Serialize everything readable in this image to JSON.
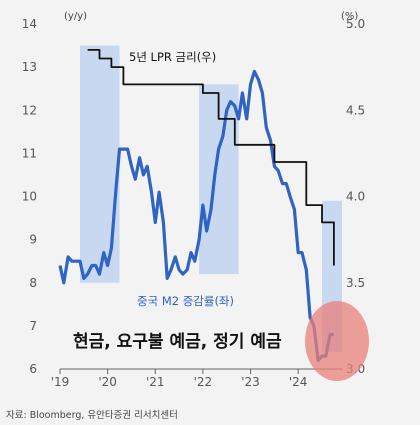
{
  "chart_data": {
    "type": "line",
    "left_axis": {
      "unit": "(y/y)",
      "ylim": [
        6,
        14
      ],
      "ticks": [
        "6",
        "7",
        "8",
        "9",
        "10",
        "11",
        "12",
        "13",
        "14"
      ]
    },
    "right_axis": {
      "unit": "(%)",
      "ylim": [
        3.0,
        5.0
      ],
      "ticks": [
        "3.0",
        "3.5",
        "4.0",
        "4.5",
        "5.0"
      ]
    },
    "x_axis": {
      "xlim": [
        2019.0,
        2024.92
      ],
      "ticks": [
        "'19",
        "'20",
        "'21",
        "'22",
        "'23",
        "'24"
      ],
      "tick_positions": [
        2019,
        2020,
        2021,
        2022,
        2023,
        2024
      ]
    },
    "series": [
      {
        "name": "중국 M2 증감률(좌)",
        "axis": "left",
        "color": "#2f63c4",
        "x": [
          2019.0,
          2019.08,
          2019.17,
          2019.25,
          2019.33,
          2019.42,
          2019.5,
          2019.58,
          2019.67,
          2019.75,
          2019.83,
          2019.92,
          2020.0,
          2020.08,
          2020.17,
          2020.25,
          2020.33,
          2020.42,
          2020.5,
          2020.58,
          2020.67,
          2020.75,
          2020.83,
          2020.92,
          2021.0,
          2021.08,
          2021.17,
          2021.25,
          2021.33,
          2021.42,
          2021.5,
          2021.58,
          2021.67,
          2021.75,
          2021.83,
          2021.92,
          2022.0,
          2022.08,
          2022.17,
          2022.25,
          2022.33,
          2022.42,
          2022.5,
          2022.58,
          2022.67,
          2022.75,
          2022.83,
          2022.92,
          2023.0,
          2023.08,
          2023.17,
          2023.25,
          2023.33,
          2023.42,
          2023.5,
          2023.58,
          2023.67,
          2023.75,
          2023.83,
          2023.92,
          2024.0,
          2024.08,
          2024.17,
          2024.25,
          2024.33,
          2024.42,
          2024.5,
          2024.58,
          2024.67,
          2024.75
        ],
        "values": [
          8.4,
          8.0,
          8.6,
          8.5,
          8.5,
          8.5,
          8.1,
          8.2,
          8.4,
          8.4,
          8.2,
          8.7,
          8.4,
          8.8,
          10.1,
          11.1,
          11.1,
          11.1,
          10.7,
          10.4,
          10.9,
          10.5,
          10.7,
          10.1,
          9.4,
          10.1,
          9.4,
          8.1,
          8.3,
          8.6,
          8.3,
          8.2,
          8.3,
          8.7,
          8.5,
          9.0,
          9.8,
          9.2,
          9.7,
          10.5,
          11.1,
          11.4,
          12.0,
          12.2,
          12.1,
          11.8,
          12.4,
          11.8,
          12.6,
          12.9,
          12.7,
          12.4,
          11.6,
          11.3,
          10.7,
          10.6,
          10.3,
          10.3,
          10.0,
          9.7,
          8.7,
          8.7,
          8.3,
          7.2,
          7.0,
          6.2,
          6.3,
          6.3,
          6.8,
          6.8
        ],
        "label_text": "중국 M2 증감률(좌)"
      },
      {
        "name": "5년 LPR 금리(우)",
        "axis": "right",
        "color": "#111111",
        "step": true,
        "x": [
          2019.58,
          2019.67,
          2019.75,
          2019.83,
          2019.92,
          2020.0,
          2020.08,
          2020.17,
          2020.25,
          2020.33,
          2022.0,
          2022.17,
          2022.33,
          2022.5,
          2022.67,
          2023.42,
          2023.5,
          2023.67,
          2024.17,
          2024.5,
          2024.67,
          2024.75
        ],
        "values": [
          4.85,
          4.85,
          4.85,
          4.8,
          4.8,
          4.8,
          4.75,
          4.75,
          4.75,
          4.65,
          4.6,
          4.6,
          4.45,
          4.45,
          4.3,
          4.3,
          4.2,
          4.2,
          3.95,
          3.85,
          3.85,
          3.6
        ],
        "label_text": "5년 LPR 금리(우)"
      }
    ],
    "shaded_periods": [
      {
        "start": 2019.42,
        "end": 2020.25,
        "y_top": 13.5,
        "y_bottom": 8.0
      },
      {
        "start": 2021.92,
        "end": 2022.75,
        "y_top": 12.6,
        "y_bottom": 8.2
      },
      {
        "start": 2024.5,
        "end": 2024.92,
        "y_top": 9.9,
        "y_bottom": 6.4
      }
    ],
    "annotation": "현금, 요구불 예금, 정기 예금",
    "source": "자료: Bloomberg, 유안타증권 리서치센터"
  }
}
